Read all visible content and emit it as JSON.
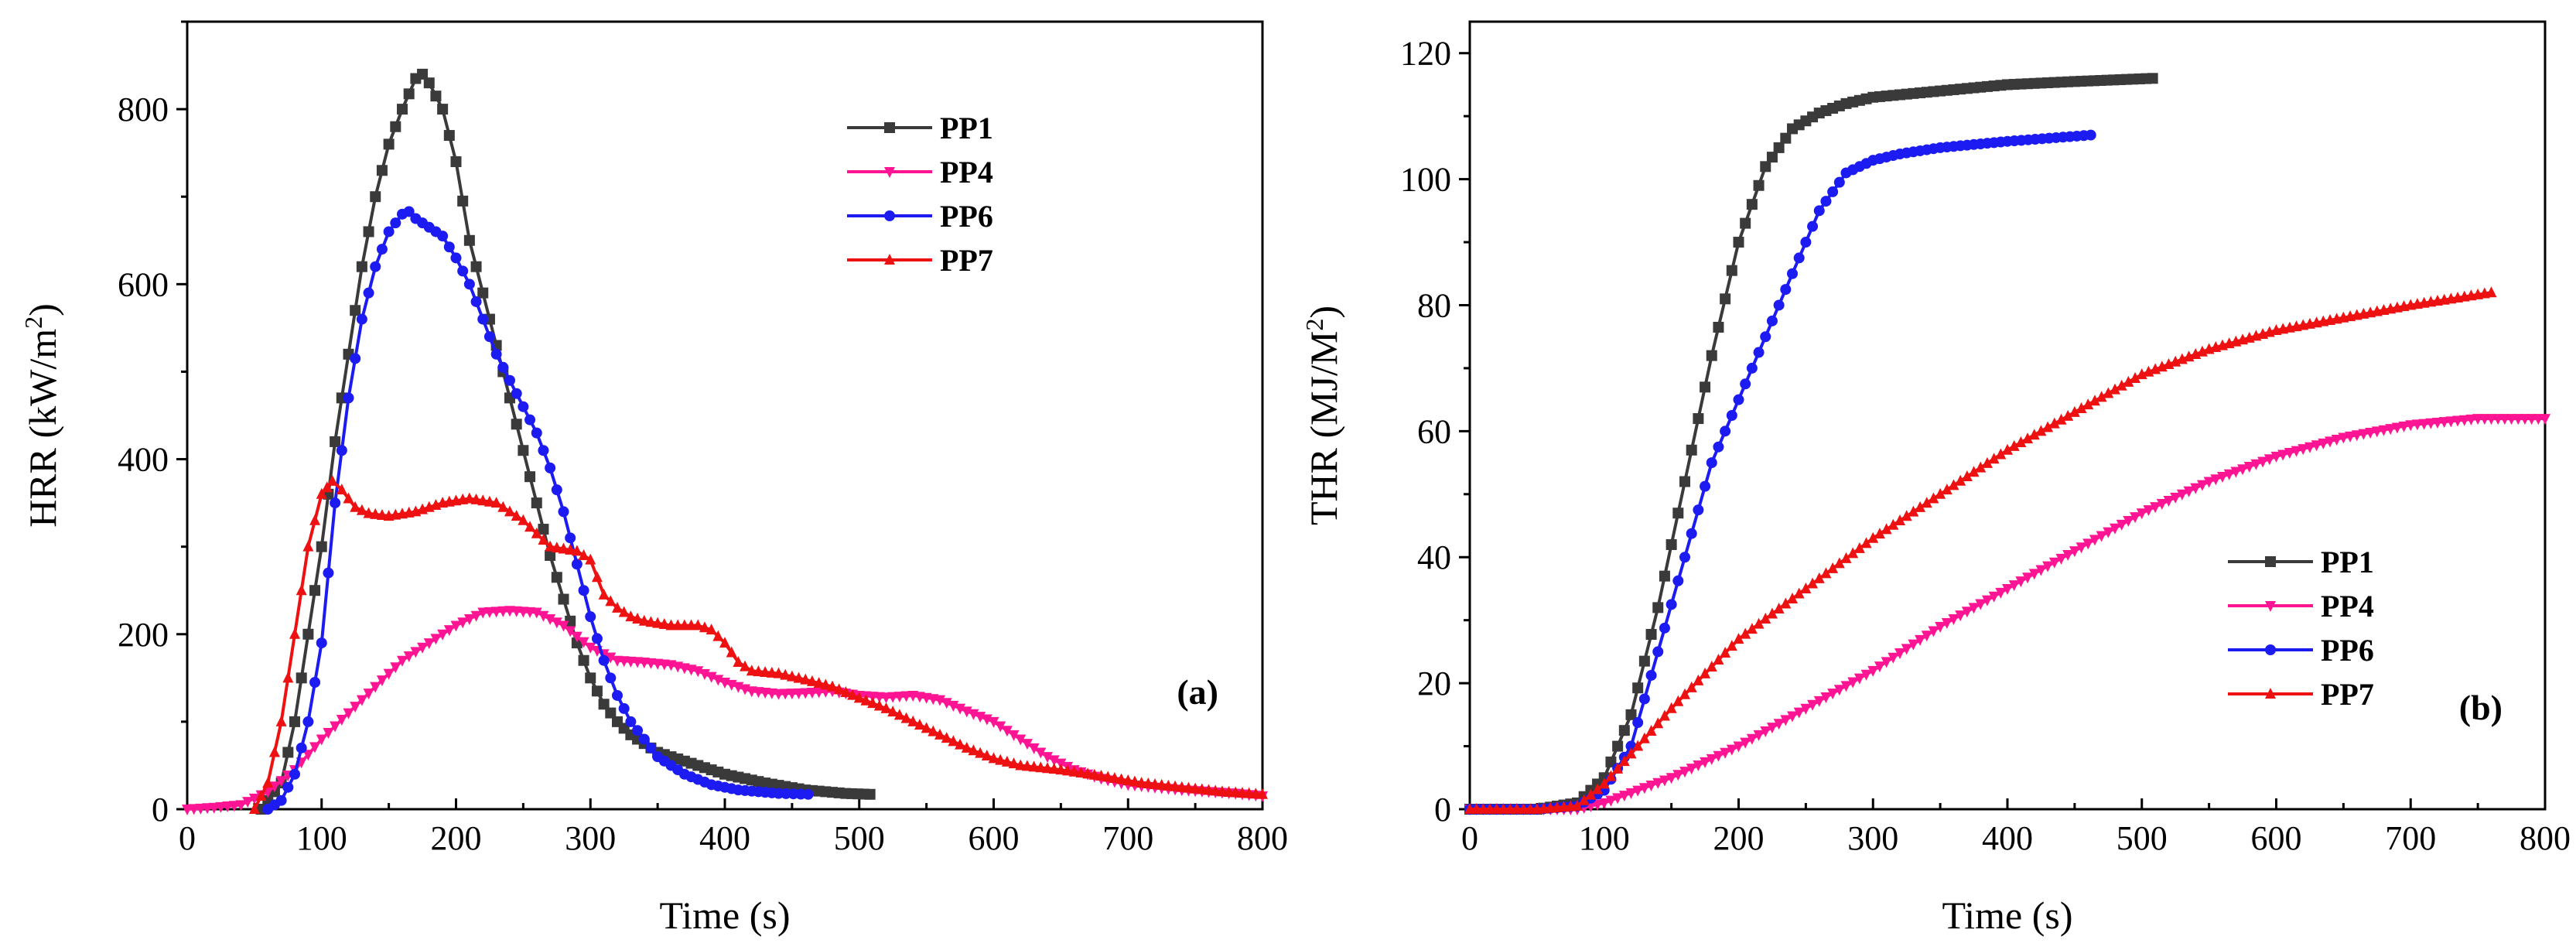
{
  "chart_data": [
    {
      "type": "line",
      "panel_label": "(a)",
      "xlabel": "Time (s)",
      "ylabel": "HRR (kW/m",
      "ylabel_sup": "2",
      "ylabel_end": ")",
      "xlim": [
        0,
        800
      ],
      "ylim": [
        0,
        900
      ],
      "xticks": [
        0,
        100,
        200,
        300,
        400,
        500,
        600,
        700,
        800
      ],
      "yticks": [
        0,
        200,
        400,
        600,
        800
      ],
      "grid": false,
      "legend_position": "top-right",
      "series": [
        {
          "name": "PP1",
          "color": "#3a3a3a",
          "marker": "square",
          "points": [
            [
              55,
              0
            ],
            [
              70,
              30
            ],
            [
              80,
              100
            ],
            [
              90,
              200
            ],
            [
              100,
              300
            ],
            [
              110,
              420
            ],
            [
              120,
              520
            ],
            [
              130,
              620
            ],
            [
              140,
              700
            ],
            [
              150,
              760
            ],
            [
              160,
              800
            ],
            [
              170,
              835
            ],
            [
              175,
              840
            ],
            [
              180,
              830
            ],
            [
              190,
              800
            ],
            [
              200,
              740
            ],
            [
              210,
              650
            ],
            [
              220,
              590
            ],
            [
              230,
              530
            ],
            [
              240,
              470
            ],
            [
              250,
              410
            ],
            [
              260,
              350
            ],
            [
              270,
              290
            ],
            [
              280,
              240
            ],
            [
              290,
              190
            ],
            [
              300,
              150
            ],
            [
              310,
              120
            ],
            [
              320,
              100
            ],
            [
              330,
              85
            ],
            [
              350,
              65
            ],
            [
              370,
              55
            ],
            [
              400,
              40
            ],
            [
              430,
              30
            ],
            [
              460,
              22
            ],
            [
              490,
              18
            ],
            [
              508,
              17
            ]
          ]
        },
        {
          "name": "PP4",
          "color": "#ff1493",
          "marker": "triangle-down",
          "points": [
            [
              0,
              0
            ],
            [
              20,
              2
            ],
            [
              40,
              5
            ],
            [
              60,
              20
            ],
            [
              80,
              45
            ],
            [
              100,
              80
            ],
            [
              120,
              110
            ],
            [
              140,
              140
            ],
            [
              160,
              170
            ],
            [
              180,
              190
            ],
            [
              200,
              210
            ],
            [
              220,
              225
            ],
            [
              240,
              227
            ],
            [
              260,
              225
            ],
            [
              280,
              210
            ],
            [
              300,
              185
            ],
            [
              320,
              170
            ],
            [
              340,
              168
            ],
            [
              360,
              165
            ],
            [
              380,
              158
            ],
            [
              400,
              145
            ],
            [
              420,
              135
            ],
            [
              440,
              132
            ],
            [
              460,
              133
            ],
            [
              480,
              135
            ],
            [
              500,
              130
            ],
            [
              520,
              128
            ],
            [
              540,
              130
            ],
            [
              560,
              125
            ],
            [
              580,
              112
            ],
            [
              600,
              100
            ],
            [
              620,
              80
            ],
            [
              640,
              60
            ],
            [
              660,
              45
            ],
            [
              680,
              35
            ],
            [
              700,
              28
            ],
            [
              720,
              25
            ],
            [
              740,
              22
            ],
            [
              760,
              20
            ],
            [
              780,
              18
            ],
            [
              800,
              15
            ]
          ]
        },
        {
          "name": "PP6",
          "color": "#1c1cf2",
          "marker": "circle",
          "points": [
            [
              60,
              0
            ],
            [
              70,
              10
            ],
            [
              80,
              40
            ],
            [
              90,
              100
            ],
            [
              100,
              190
            ],
            [
              110,
              350
            ],
            [
              120,
              470
            ],
            [
              130,
              560
            ],
            [
              140,
              620
            ],
            [
              150,
              660
            ],
            [
              160,
              680
            ],
            [
              165,
              683
            ],
            [
              170,
              675
            ],
            [
              180,
              665
            ],
            [
              190,
              655
            ],
            [
              200,
              630
            ],
            [
              210,
              600
            ],
            [
              220,
              560
            ],
            [
              230,
              520
            ],
            [
              240,
              490
            ],
            [
              250,
              460
            ],
            [
              260,
              430
            ],
            [
              270,
              390
            ],
            [
              280,
              340
            ],
            [
              290,
              280
            ],
            [
              300,
              220
            ],
            [
              310,
              170
            ],
            [
              320,
              130
            ],
            [
              330,
              100
            ],
            [
              340,
              80
            ],
            [
              350,
              60
            ],
            [
              370,
              40
            ],
            [
              390,
              28
            ],
            [
              410,
              22
            ],
            [
              440,
              18
            ],
            [
              462,
              17
            ]
          ]
        },
        {
          "name": "PP7",
          "color": "#ee1111",
          "marker": "triangle-up",
          "points": [
            [
              50,
              0
            ],
            [
              60,
              30
            ],
            [
              70,
              100
            ],
            [
              80,
              200
            ],
            [
              90,
              300
            ],
            [
              100,
              360
            ],
            [
              108,
              375
            ],
            [
              115,
              365
            ],
            [
              125,
              345
            ],
            [
              135,
              338
            ],
            [
              150,
              335
            ],
            [
              170,
              340
            ],
            [
              190,
              350
            ],
            [
              210,
              355
            ],
            [
              230,
              350
            ],
            [
              250,
              330
            ],
            [
              270,
              300
            ],
            [
              290,
              295
            ],
            [
              300,
              285
            ],
            [
              310,
              245
            ],
            [
              320,
              230
            ],
            [
              330,
              220
            ],
            [
              340,
              215
            ],
            [
              360,
              210
            ],
            [
              380,
              210
            ],
            [
              390,
              205
            ],
            [
              400,
              190
            ],
            [
              410,
              168
            ],
            [
              420,
              158
            ],
            [
              440,
              155
            ],
            [
              460,
              148
            ],
            [
              480,
              140
            ],
            [
              500,
              127
            ],
            [
              520,
              115
            ],
            [
              540,
              100
            ],
            [
              560,
              85
            ],
            [
              580,
              70
            ],
            [
              600,
              58
            ],
            [
              620,
              50
            ],
            [
              650,
              45
            ],
            [
              680,
              38
            ],
            [
              710,
              30
            ],
            [
              740,
              25
            ],
            [
              770,
              20
            ],
            [
              800,
              17
            ]
          ]
        }
      ]
    },
    {
      "type": "line",
      "panel_label": "(b)",
      "xlabel": "Time (s)",
      "ylabel": "THR (MJ/M",
      "ylabel_sup": "2",
      "ylabel_end": ")",
      "xlim": [
        0,
        800
      ],
      "ylim": [
        0,
        125
      ],
      "xticks": [
        0,
        100,
        200,
        300,
        400,
        500,
        600,
        700,
        800
      ],
      "yticks": [
        0,
        20,
        40,
        60,
        80,
        100,
        120
      ],
      "grid": false,
      "legend_position": "bottom-right",
      "series": [
        {
          "name": "PP1",
          "color": "#3a3a3a",
          "marker": "square",
          "points": [
            [
              0,
              0
            ],
            [
              50,
              0
            ],
            [
              80,
              1
            ],
            [
              100,
              5
            ],
            [
              120,
              15
            ],
            [
              140,
              32
            ],
            [
              160,
              52
            ],
            [
              180,
              72
            ],
            [
              200,
              90
            ],
            [
              220,
              102
            ],
            [
              240,
              108
            ],
            [
              260,
              110.5
            ],
            [
              280,
              112
            ],
            [
              300,
              113
            ],
            [
              350,
              114
            ],
            [
              400,
              115
            ],
            [
              450,
              115.5
            ],
            [
              508,
              116
            ]
          ]
        },
        {
          "name": "PP4",
          "color": "#ff1493",
          "marker": "triangle-down",
          "points": [
            [
              0,
              0
            ],
            [
              50,
              0
            ],
            [
              80,
              0
            ],
            [
              100,
              1
            ],
            [
              150,
              5
            ],
            [
              200,
              10
            ],
            [
              250,
              16
            ],
            [
              300,
              22
            ],
            [
              350,
              29
            ],
            [
              400,
              35
            ],
            [
              450,
              41
            ],
            [
              500,
              47
            ],
            [
              550,
              52
            ],
            [
              600,
              56
            ],
            [
              650,
              59
            ],
            [
              700,
              61
            ],
            [
              750,
              62
            ],
            [
              800,
              62
            ]
          ]
        },
        {
          "name": "PP6",
          "color": "#1c1cf2",
          "marker": "circle",
          "points": [
            [
              0,
              0
            ],
            [
              50,
              0
            ],
            [
              80,
              0.5
            ],
            [
              100,
              3
            ],
            [
              120,
              10
            ],
            [
              140,
              25
            ],
            [
              160,
              40
            ],
            [
              180,
              55
            ],
            [
              200,
              65
            ],
            [
              220,
              75
            ],
            [
              240,
              85
            ],
            [
              260,
              95
            ],
            [
              280,
              101
            ],
            [
              300,
              103
            ],
            [
              320,
              104
            ],
            [
              350,
              105
            ],
            [
              400,
              106
            ],
            [
              462,
              107
            ]
          ]
        },
        {
          "name": "PP7",
          "color": "#ee1111",
          "marker": "triangle-up",
          "points": [
            [
              0,
              0
            ],
            [
              50,
              0
            ],
            [
              80,
              0.5
            ],
            [
              100,
              4
            ],
            [
              150,
              16
            ],
            [
              200,
              27
            ],
            [
              250,
              35
            ],
            [
              300,
              43
            ],
            [
              350,
              50
            ],
            [
              400,
              57
            ],
            [
              450,
              63
            ],
            [
              500,
              69
            ],
            [
              550,
              73
            ],
            [
              600,
              76
            ],
            [
              650,
              78
            ],
            [
              700,
              80
            ],
            [
              760,
              82
            ]
          ]
        }
      ]
    }
  ]
}
